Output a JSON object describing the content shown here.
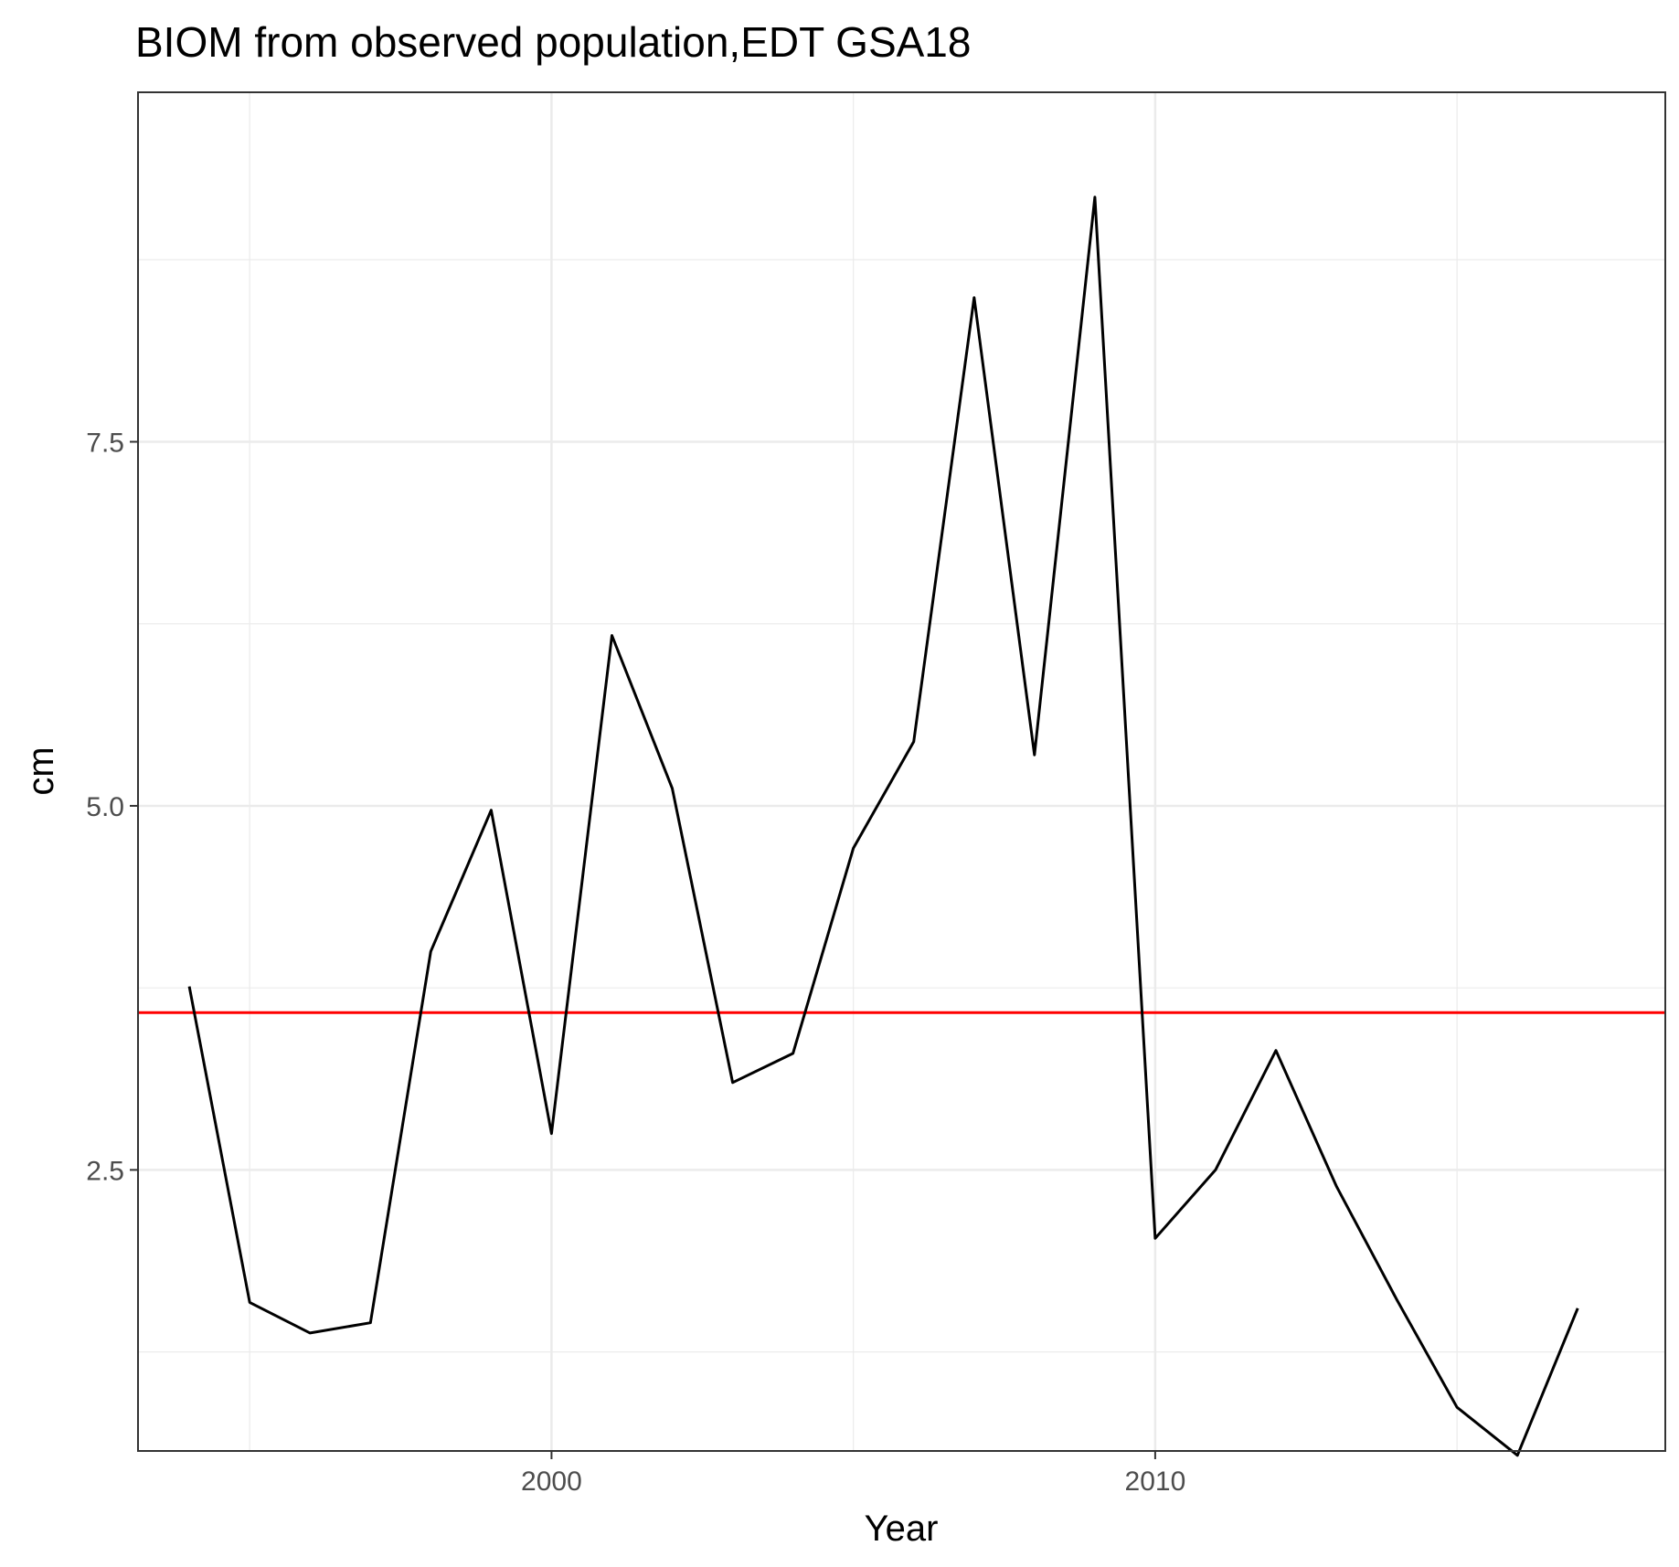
{
  "chart_data": {
    "type": "line",
    "title": "BIOM from observed population,EDT GSA18",
    "xlabel": "Year",
    "ylabel": "cm",
    "xlim": [
      1993.15,
      2018.45
    ],
    "ylim": [
      0.57,
      9.9
    ],
    "x_ticks": [
      2000,
      2010
    ],
    "x_tick_labels": [
      "2000",
      "2010"
    ],
    "x_minor_ticks": [
      1995,
      2005,
      2015
    ],
    "y_ticks": [
      2.5,
      5.0,
      7.5
    ],
    "y_tick_labels": [
      "2.5",
      "5.0",
      "7.5"
    ],
    "y_minor_ticks": [
      1.25,
      3.75,
      6.25,
      8.75
    ],
    "grid": true,
    "series": [
      {
        "color": "#000000",
        "x": [
          1994,
          1995,
          1996,
          1997,
          1998,
          1999,
          2000,
          2001,
          2002,
          2003,
          2004,
          2005,
          2006,
          2007,
          2008,
          2009,
          2010,
          2011,
          2012,
          2013,
          2014,
          2015,
          2016,
          2017
        ],
        "y": [
          3.76,
          1.59,
          1.38,
          1.45,
          4.0,
          4.97,
          2.75,
          6.17,
          5.12,
          3.1,
          3.3,
          4.71,
          5.44,
          8.49,
          5.35,
          9.18,
          2.03,
          2.5,
          3.32,
          2.39,
          1.61,
          0.87,
          0.54,
          1.55
        ]
      }
    ],
    "hline": {
      "y": 3.58,
      "color": "#ff0000"
    }
  }
}
